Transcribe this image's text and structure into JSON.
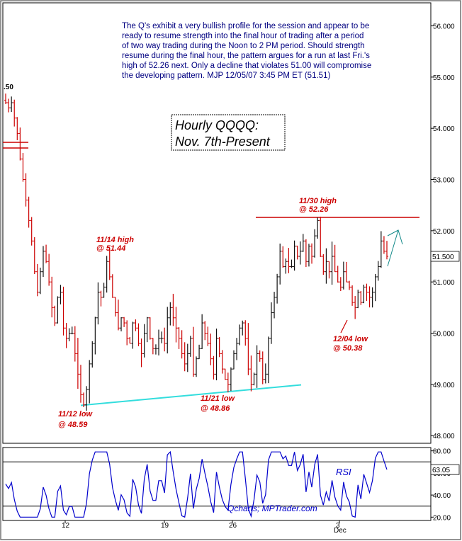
{
  "chart_data": {
    "type": "ohlc",
    "title": "Hourly QQQQ:",
    "subtitle": "Nov. 7th-Present",
    "commentary": [
      "The Q's exhibit a very bullish profile for the session and appear to be",
      "ready to resume strength into the final hour of trading after a period",
      "of two way trading during the Noon to 2 PM period. Should strength",
      "resume during the final hour, the pattern argues for a run at last Fri.'s",
      "high of 52.26 next. Only a decline that violates 51.00 will compromise",
      "the developing pattern.   MJP  12/05/07 3:45 PM ET  (51.51)"
    ],
    "price_axis": {
      "ylim": [
        47.85,
        56.45
      ],
      "ticks": [
        "56.000",
        "55.000",
        "54.000",
        "53.000",
        "52.000",
        "51.000",
        "50.000",
        "49.000",
        "48.000"
      ]
    },
    "last_price_label": "51.500",
    "left_edge_label": ".50",
    "x_ticks": [
      "12",
      "19",
      "26",
      "3"
    ],
    "x_sub_label": "Dec",
    "annotations": [
      {
        "lines": [
          "11/30 high",
          "@ 52.26"
        ],
        "date": "11/30",
        "value": 52.26
      },
      {
        "lines": [
          "11/14 high",
          "@ 51.44"
        ],
        "date": "11/14",
        "value": 51.44
      },
      {
        "lines": [
          "11/12 low",
          "@ 48.59"
        ],
        "date": "11/12",
        "value": 48.59
      },
      {
        "lines": [
          "11/21 low",
          "@ 48.86"
        ],
        "date": "11/21",
        "value": 48.86
      },
      {
        "lines": [
          "12/04 low",
          "@ 50.38"
        ],
        "date": "12/04",
        "value": 50.38
      }
    ],
    "resistance_line": 52.26,
    "support_trendline": {
      "from": 48.59,
      "to": 48.99
    },
    "price_path_approx": [
      54.5,
      54.4,
      54.5,
      54.2,
      53.9,
      53.4,
      53.0,
      52.6,
      52.2,
      51.8,
      51.2,
      50.8,
      51.2,
      51.6,
      51.4,
      51.0,
      50.5,
      50.2,
      50.7,
      50.8,
      50.1,
      49.9,
      50.0,
      50.0,
      49.6,
      49.2,
      48.8,
      48.6,
      48.9,
      49.4,
      49.8,
      50.3,
      50.8,
      50.7,
      50.9,
      51.4,
      51.1,
      50.7,
      50.4,
      50.1,
      50.3,
      50.2,
      49.9,
      49.8,
      50.2,
      50.1,
      49.8,
      49.6,
      50.0,
      50.3,
      49.9,
      49.7,
      49.7,
      49.9,
      49.9,
      49.8,
      50.3,
      50.5,
      50.3,
      50.1,
      49.9,
      49.6,
      49.4,
      49.6,
      49.9,
      49.2,
      49.5,
      49.7,
      50.2,
      50.0,
      49.8,
      49.5,
      49.2,
      49.9,
      49.6,
      49.3,
      49.1,
      49.0,
      49.3,
      49.6,
      49.8,
      50.1,
      50.2,
      49.9,
      49.3,
      49.0,
      49.2,
      49.6,
      49.5,
      49.1,
      49.2,
      49.9,
      50.4,
      50.7,
      51.1,
      51.6,
      51.3,
      51.4,
      51.3,
      51.3,
      51.7,
      51.5,
      51.6,
      51.8,
      51.4,
      51.7,
      51.5,
      51.9,
      52.2,
      51.5,
      51.2,
      51.4,
      51.2,
      51.5,
      51.2,
      51.0,
      50.9,
      51.2,
      51.0,
      50.9,
      50.6,
      50.5,
      50.8,
      50.6,
      50.9,
      50.8,
      50.7,
      50.8,
      51.1,
      51.3,
      51.8,
      51.6,
      51.5
    ],
    "rsi": {
      "label": "RSI",
      "last_label": "63.05",
      "ticks": [
        "80.00",
        "60.00",
        "40.00",
        "20.00"
      ],
      "reference_levels": [
        70,
        30
      ],
      "ylim": [
        17,
        83
      ]
    },
    "watermark": "Qcharts; MPTrader.com"
  }
}
